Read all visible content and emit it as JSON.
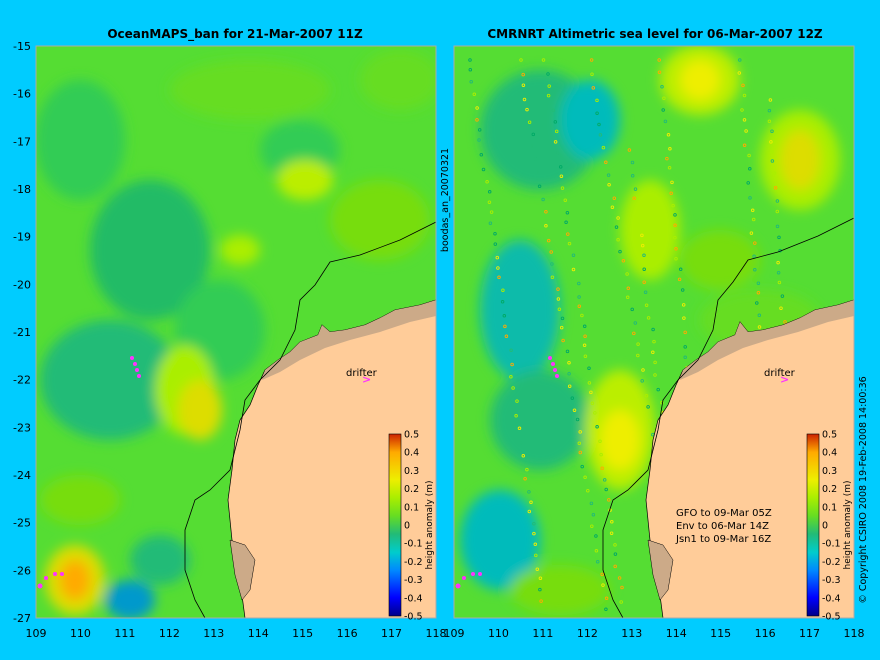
{
  "left_panel": {
    "title": "OceanMAPS_ban for 21-Mar-2007 11Z",
    "drifter_label": "drifter",
    "colorbar_label": "height anomaly (m)"
  },
  "right_panel": {
    "title": "CMRNRT Altimetric sea level  for 06-Mar-2007 12Z",
    "drifter_label": "drifter",
    "colorbar_label": "height anomaly (m)",
    "notes": [
      "GFO to 09-Mar 05Z",
      "Env to 06-Mar 14Z",
      "Jsn1 to 09-Mar 16Z"
    ]
  },
  "y_ticks": [
    "-15",
    "-16",
    "-17",
    "-18",
    "-19",
    "-20",
    "-21",
    "-22",
    "-23",
    "-24",
    "-25",
    "-26",
    "-27"
  ],
  "x_ticks": [
    "109",
    "110",
    "111",
    "112",
    "113",
    "114",
    "115",
    "116",
    "117",
    "118"
  ],
  "colorbar_ticks": [
    "0.5",
    "0.4",
    "0.3",
    "0.2",
    "0.1",
    "0",
    "-0.1",
    "-0.2",
    "-0.3",
    "-0.4",
    "-0.5"
  ],
  "vertical_label": "boodas_an_20070321",
  "copyright": "© Copyright CSIRO 2008   19-Feb-2008 14:00:36",
  "colors": {
    "background": "#00ccff",
    "land": "#ffcc99",
    "coast_shelf": "#ccaa88",
    "drifter": "#ff33ff",
    "colormap": [
      "#000088",
      "#0000ff",
      "#0088ff",
      "#00cccc",
      "#22bb77",
      "#44cc44",
      "#66dd22",
      "#aaee00",
      "#eeee00",
      "#ffaa00",
      "#cc2200"
    ]
  }
}
